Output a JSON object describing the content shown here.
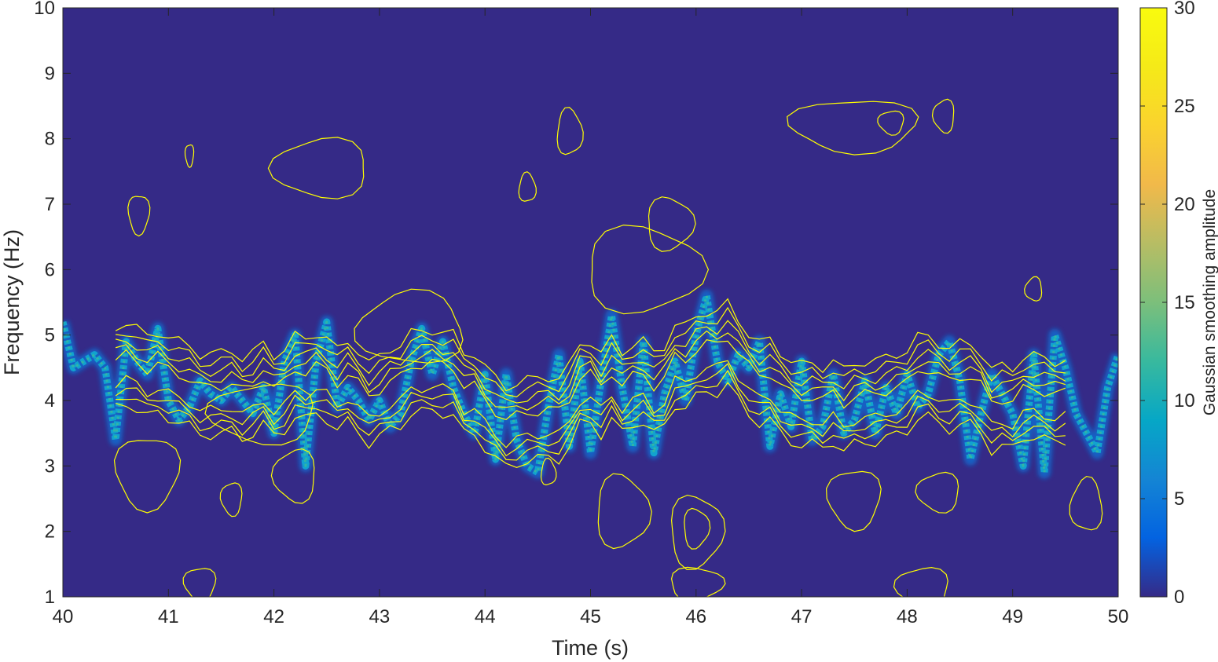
{
  "chart_data": {
    "type": "heatmap",
    "xlabel": "Time (s)",
    "ylabel": "Frequency (Hz)",
    "colorbar_label": "Gaussian smoothing amplitude",
    "xlim": [
      40,
      50
    ],
    "ylim": [
      1,
      10
    ],
    "clim": [
      0,
      30
    ],
    "x_ticks": [
      "40",
      "41",
      "42",
      "43",
      "44",
      "45",
      "46",
      "47",
      "48",
      "49",
      "50"
    ],
    "y_ticks": [
      "1",
      "2",
      "3",
      "4",
      "5",
      "6",
      "7",
      "8",
      "9",
      "10"
    ],
    "colorbar_ticks": [
      "0",
      "5",
      "10",
      "15",
      "20",
      "25",
      "30"
    ],
    "colormap": "parula",
    "background_color": "#352a87",
    "contour_color": "#ffff00",
    "ridge": {
      "name": "instantaneous frequency ridge",
      "t": [
        40.0,
        40.1,
        40.2,
        40.3,
        40.4,
        40.5,
        40.6,
        40.7,
        40.8,
        40.9,
        41.0,
        41.1,
        41.2,
        41.3,
        41.4,
        41.5,
        41.6,
        41.7,
        41.8,
        41.9,
        42.0,
        42.1,
        42.2,
        42.3,
        42.4,
        42.5,
        42.6,
        42.7,
        42.8,
        42.9,
        43.0,
        43.1,
        43.2,
        43.3,
        43.4,
        43.5,
        43.6,
        43.7,
        43.8,
        43.9,
        44.0,
        44.1,
        44.2,
        44.3,
        44.4,
        44.5,
        44.6,
        44.7,
        44.8,
        44.9,
        45.0,
        45.1,
        45.2,
        45.3,
        45.4,
        45.5,
        45.6,
        45.7,
        45.8,
        45.9,
        46.0,
        46.1,
        46.2,
        46.3,
        46.4,
        46.5,
        46.6,
        46.7,
        46.8,
        46.9,
        47.0,
        47.1,
        47.2,
        47.3,
        47.4,
        47.5,
        47.6,
        47.7,
        47.8,
        47.9,
        48.0,
        48.1,
        48.2,
        48.3,
        48.4,
        48.5,
        48.6,
        48.7,
        48.8,
        48.9,
        49.0,
        49.1,
        49.2,
        49.3,
        49.4,
        49.5,
        49.6,
        49.7,
        49.8,
        49.9,
        50.0
      ],
      "f": [
        5.2,
        4.5,
        4.6,
        4.7,
        4.5,
        3.4,
        4.9,
        4.6,
        4.4,
        5.1,
        4.0,
        3.7,
        3.9,
        4.3,
        4.1,
        4.0,
        4.2,
        4.0,
        3.8,
        4.2,
        3.5,
        4.6,
        5.0,
        3.0,
        4.6,
        5.2,
        3.9,
        4.2,
        4.0,
        3.7,
        4.0,
        3.6,
        3.8,
        4.6,
        5.1,
        4.4,
        4.9,
        4.2,
        3.8,
        3.5,
        4.4,
        3.1,
        4.4,
        3.4,
        3.0,
        2.9,
        3.9,
        4.7,
        3.3,
        4.6,
        3.2,
        4.3,
        5.3,
        4.2,
        3.3,
        4.9,
        3.2,
        4.1,
        4.6,
        4.0,
        5.0,
        5.6,
        4.6,
        4.3,
        4.7,
        4.5,
        4.9,
        3.3,
        4.1,
        3.6,
        4.6,
        3.4,
        3.6,
        4.4,
        3.5,
        3.7,
        4.3,
        3.5,
        4.2,
        3.8,
        4.4,
        3.9,
        4.1,
        4.7,
        4.9,
        4.3,
        3.1,
        3.8,
        4.4,
        4.1,
        3.8,
        3.0,
        4.7,
        2.9,
        5.0,
        4.5,
        3.8,
        3.5,
        3.2,
        4.2,
        4.7
      ]
    }
  }
}
